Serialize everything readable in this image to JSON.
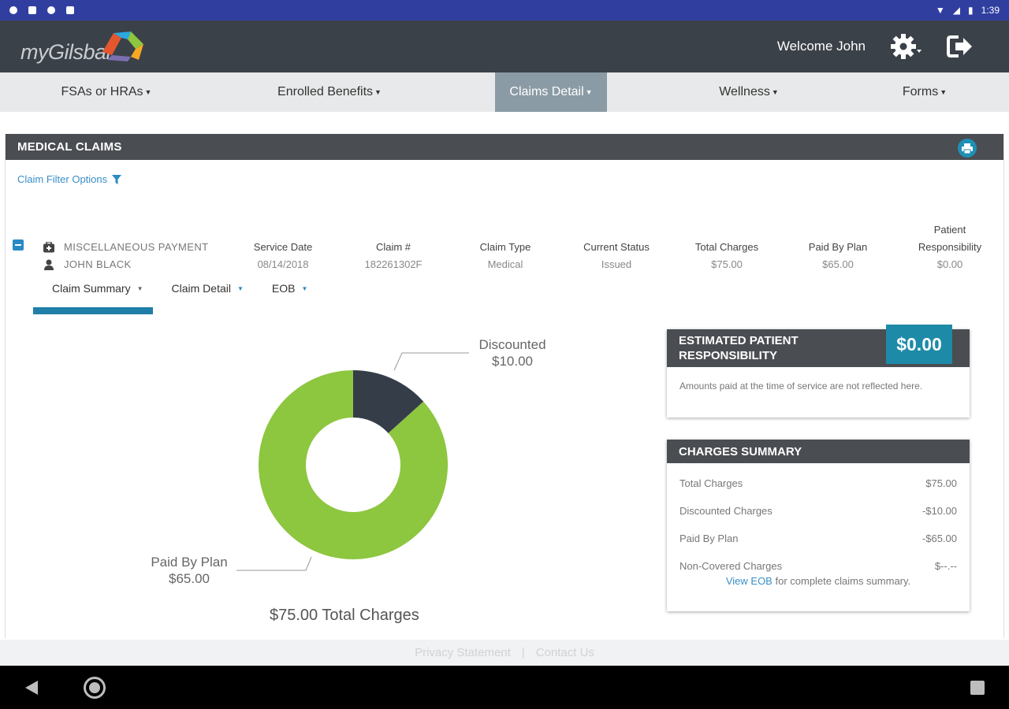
{
  "status_bar": {
    "time": "1:39"
  },
  "header": {
    "logo_text": "myGilsbar",
    "welcome": "Welcome John"
  },
  "nav": {
    "items": [
      {
        "label": "FSAs or HRAs",
        "active": false
      },
      {
        "label": "Enrolled Benefits",
        "active": false
      },
      {
        "label": "Claims Detail",
        "active": true
      },
      {
        "label": "Wellness",
        "active": false
      },
      {
        "label": "Forms",
        "active": false
      }
    ]
  },
  "panel": {
    "title": "MEDICAL CLAIMS",
    "filter_label": "Claim Filter Options"
  },
  "claim": {
    "type_name": "MISCELLANEOUS PAYMENT",
    "patient": "JOHN BLACK",
    "columns": [
      {
        "header": "Service Date",
        "value": "08/14/2018"
      },
      {
        "header": "Claim #",
        "value": "182261302F"
      },
      {
        "header": "Claim Type",
        "value": "Medical"
      },
      {
        "header": "Current Status",
        "value": "Issued"
      },
      {
        "header": "Total Charges",
        "value": "$75.00"
      },
      {
        "header": "Paid By Plan",
        "value": "$65.00"
      },
      {
        "header": "Patient Responsibility",
        "header_line1": "Patient",
        "header_line2": "Responsibility",
        "value": "$0.00"
      }
    ]
  },
  "tabs": [
    "Claim Summary",
    "Claim Detail",
    "EOB"
  ],
  "chart_data": {
    "type": "pie",
    "series": [
      {
        "name": "Discounted",
        "value": 10.0,
        "label": "$10.00",
        "color": "#353d48"
      },
      {
        "name": "Paid By Plan",
        "value": 65.0,
        "label": "$65.00",
        "color": "#8dc63f"
      }
    ],
    "total_label": "$75.00 Total Charges"
  },
  "estimated": {
    "title": "ESTIMATED PATIENT RESPONSIBILITY",
    "title_line1": "ESTIMATED PATIENT",
    "title_line2": "RESPONSIBILITY",
    "amount": "$0.00",
    "note": "Amounts paid at the time of service are not reflected here."
  },
  "summary": {
    "title": "CHARGES SUMMARY",
    "rows": [
      {
        "label": "Total Charges",
        "value": "$75.00"
      },
      {
        "label": "Discounted Charges",
        "value": "-$10.00"
      },
      {
        "label": "Paid By Plan",
        "value": "-$65.00"
      },
      {
        "label": "Non-Covered Charges",
        "value": "$--.--"
      }
    ],
    "eob_link": "View EOB",
    "eob_suffix": " for complete claims summary."
  },
  "footer": {
    "privacy": "Privacy Statement",
    "separator": "|",
    "contact": "Contact Us"
  },
  "colors": {
    "header": "#3b4148",
    "accent": "#1d8aa8",
    "green": "#8dc63f",
    "dark_slice": "#353d48"
  }
}
